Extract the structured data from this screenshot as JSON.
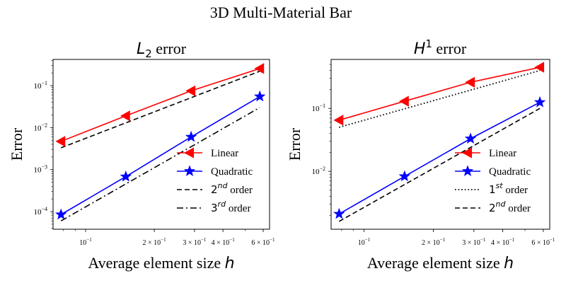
{
  "figure": {
    "suptitle": "3D Multi-Material Bar"
  },
  "colors": {
    "linear": "#ff0000",
    "quadratic": "#0000ff",
    "reference": "#000000"
  },
  "chart_data": [
    {
      "type": "line",
      "title_math": "L",
      "title_sub": "2",
      "title_text": "error",
      "xlabel_text": "Average element size",
      "xlabel_math": "h",
      "ylabel": "Error",
      "xscale": "log",
      "yscale": "log",
      "xlim": [
        0.072,
        0.64
      ],
      "ylim": [
        3.8e-05,
        0.42
      ],
      "xticks": [
        {
          "value": 0.1,
          "base": "10",
          "exp": "−1",
          "coef": ""
        },
        {
          "value": 0.2,
          "base": "10",
          "exp": "−1",
          "coef": "2 × "
        },
        {
          "value": 0.3,
          "base": "10",
          "exp": "−1",
          "coef": "3 × "
        },
        {
          "value": 0.4,
          "base": "10",
          "exp": "−1",
          "coef": "4 × "
        },
        {
          "value": 0.6,
          "base": "10",
          "exp": "−1",
          "coef": "6 × "
        }
      ],
      "yticks": [
        {
          "value": 0.0001,
          "base": "10",
          "exp": "−4"
        },
        {
          "value": 0.001,
          "base": "10",
          "exp": "−3"
        },
        {
          "value": 0.01,
          "base": "10",
          "exp": "−2"
        },
        {
          "value": 0.1,
          "base": "10",
          "exp": "−1"
        }
      ],
      "series": [
        {
          "name": "Linear",
          "style": "solid",
          "color_key": "linear",
          "marker": "triangle-left",
          "x": [
            0.078,
            0.15,
            0.29,
            0.58
          ],
          "y": [
            0.0047,
            0.019,
            0.075,
            0.255
          ]
        },
        {
          "name": "Quadratic",
          "style": "solid",
          "color_key": "quadratic",
          "marker": "star",
          "x": [
            0.078,
            0.15,
            0.29,
            0.58
          ],
          "y": [
            8.5e-05,
            0.00068,
            0.006,
            0.055
          ]
        },
        {
          "name_math": "2",
          "name_sup": "nd",
          "name_text": "order",
          "style": "dashed",
          "color_key": "reference",
          "marker": "none",
          "x": [
            0.078,
            0.58
          ],
          "y": [
            0.0033,
            0.22
          ]
        },
        {
          "name_math": "3",
          "name_sup": "rd",
          "name_text": "order",
          "style": "dashdot",
          "color_key": "reference",
          "marker": "none",
          "x": [
            0.078,
            0.58
          ],
          "y": [
            6e-05,
            0.03
          ]
        }
      ],
      "legend": "lower-right"
    },
    {
      "type": "line",
      "title_math": "H",
      "title_sup": "1",
      "title_text": "error",
      "xlabel_text": "Average element size",
      "xlabel_math": "h",
      "ylabel": "Error",
      "xscale": "log",
      "yscale": "log",
      "xlim": [
        0.072,
        0.64
      ],
      "ylim": [
        0.0012,
        0.6
      ],
      "xticks": [
        {
          "value": 0.1,
          "base": "10",
          "exp": "−1",
          "coef": ""
        },
        {
          "value": 0.2,
          "base": "10",
          "exp": "−1",
          "coef": "2 × "
        },
        {
          "value": 0.3,
          "base": "10",
          "exp": "−1",
          "coef": "3 × "
        },
        {
          "value": 0.4,
          "base": "10",
          "exp": "−1",
          "coef": "4 × "
        },
        {
          "value": 0.6,
          "base": "10",
          "exp": "−1",
          "coef": "6 × "
        }
      ],
      "yticks": [
        {
          "value": 0.01,
          "base": "10",
          "exp": "−2"
        },
        {
          "value": 0.1,
          "base": "10",
          "exp": "−1"
        }
      ],
      "series": [
        {
          "name": "Linear",
          "style": "solid",
          "color_key": "linear",
          "marker": "triangle-left",
          "x": [
            0.078,
            0.15,
            0.29,
            0.58
          ],
          "y": [
            0.065,
            0.13,
            0.26,
            0.45
          ]
        },
        {
          "name": "Quadratic",
          "style": "solid",
          "color_key": "quadratic",
          "marker": "star",
          "x": [
            0.078,
            0.15,
            0.29,
            0.58
          ],
          "y": [
            0.0021,
            0.0083,
            0.033,
            0.125
          ]
        },
        {
          "name_math": "1",
          "name_sup": "st",
          "name_text": "order",
          "style": "dotted",
          "color_key": "reference",
          "marker": "none",
          "x": [
            0.078,
            0.58
          ],
          "y": [
            0.05,
            0.4
          ]
        },
        {
          "name_math": "2",
          "name_sup": "nd",
          "name_text": "order",
          "style": "dashed",
          "color_key": "reference",
          "marker": "none",
          "x": [
            0.078,
            0.58
          ],
          "y": [
            0.0016,
            0.1
          ]
        }
      ],
      "legend": "lower-right"
    }
  ]
}
